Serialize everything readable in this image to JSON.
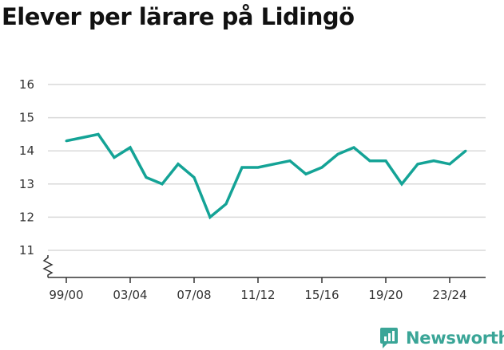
{
  "colors": {
    "line": "#14a396",
    "grid": "#d9d9d9",
    "axis": "#333333",
    "brand": "#3aa597"
  },
  "brand": {
    "name": "Newsworthy",
    "icon": "newsworthy-logo-icon"
  },
  "chart_data": {
    "type": "line",
    "title": "Elever per lärare på Lidingö",
    "xlabel": "",
    "ylabel": "",
    "grid": true,
    "legend": "none",
    "ylim": [
      11,
      16
    ],
    "y_axis_break": true,
    "yticks": [
      11,
      12,
      13,
      14,
      15,
      16
    ],
    "xtick_labels": [
      "99/00",
      "03/04",
      "07/08",
      "11/12",
      "15/16",
      "19/20",
      "23/24"
    ],
    "xtick_indices": [
      0,
      4,
      8,
      12,
      16,
      20,
      24
    ],
    "categories": [
      "99/00",
      "00/01",
      "01/02",
      "02/03",
      "03/04",
      "04/05",
      "05/06",
      "06/07",
      "07/08",
      "08/09",
      "09/10",
      "10/11",
      "11/12",
      "12/13",
      "13/14",
      "14/15",
      "15/16",
      "16/17",
      "17/18",
      "18/19",
      "19/20",
      "20/21",
      "21/22",
      "22/23",
      "23/24",
      "24/25"
    ],
    "series": [
      {
        "values": [
          14.3,
          14.4,
          14.5,
          13.8,
          14.1,
          13.2,
          13.0,
          13.6,
          13.2,
          12.0,
          12.4,
          13.5,
          13.5,
          13.6,
          13.7,
          13.3,
          13.5,
          13.9,
          14.1,
          13.7,
          13.7,
          13.0,
          13.6,
          13.7,
          13.6,
          14.0
        ]
      }
    ]
  }
}
